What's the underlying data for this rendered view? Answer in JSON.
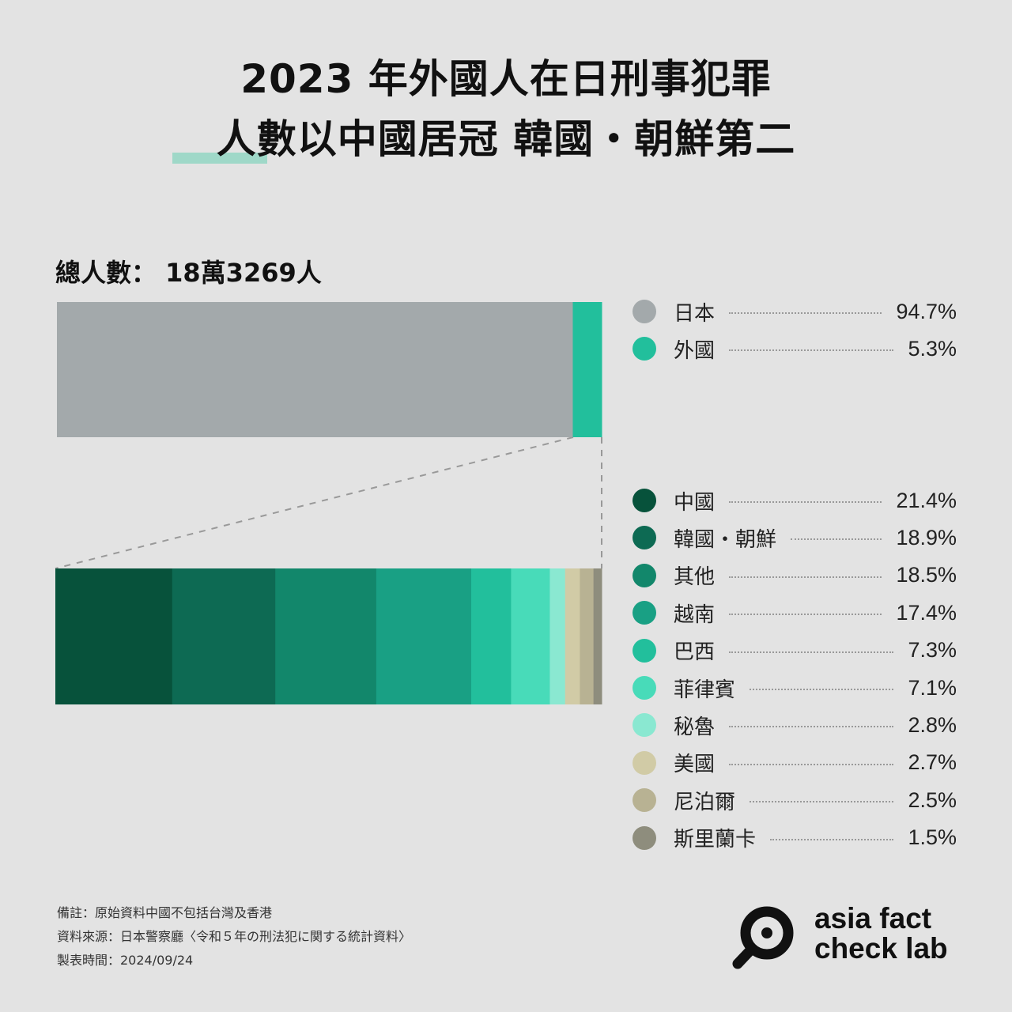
{
  "title_line1": "2023 年外國人在日刑事犯罪",
  "title_line2": "人數以中國居冠 韓國・朝鮮第二",
  "total_label": "總人數： 18萬3269人",
  "chart_data": [
    {
      "type": "bar",
      "orientation": "horizontal-stacked",
      "categories": [
        "日本",
        "外國"
      ],
      "values": [
        94.7,
        5.3
      ],
      "labels": [
        "94.7%",
        "5.3%"
      ],
      "colors": [
        "#a3a9ab",
        "#22bf9c"
      ]
    },
    {
      "type": "bar",
      "orientation": "horizontal-stacked",
      "categories": [
        "中國",
        "韓國・朝鮮",
        "其他",
        "越南",
        "巴西",
        "菲律賓",
        "秘魯",
        "美國",
        "尼泊爾",
        "斯里蘭卡"
      ],
      "values": [
        21.4,
        18.9,
        18.5,
        17.4,
        7.3,
        7.1,
        2.8,
        2.7,
        2.5,
        1.5
      ],
      "labels": [
        "21.4%",
        "18.9%",
        "18.5%",
        "17.4%",
        "7.3%",
        "7.1%",
        "2.8%",
        "2.7%",
        "2.5%",
        "1.5%"
      ],
      "colors": [
        "#07523b",
        "#0d6a53",
        "#12876b",
        "#19a084",
        "#22bf9c",
        "#48dbb9",
        "#8ae8d1",
        "#d1cba6",
        "#b8b293",
        "#8e8d7d"
      ]
    }
  ],
  "notes": [
    "備註：原始資料中國不包括台灣及香港",
    "資料來源：日本警察廳〈令和５年の刑法犯に関する統計資料〉",
    "製表時間：2024/09/24"
  ],
  "logo": {
    "line1": "asia fact",
    "line2": "check lab",
    "icon": "magnifier-icon"
  }
}
